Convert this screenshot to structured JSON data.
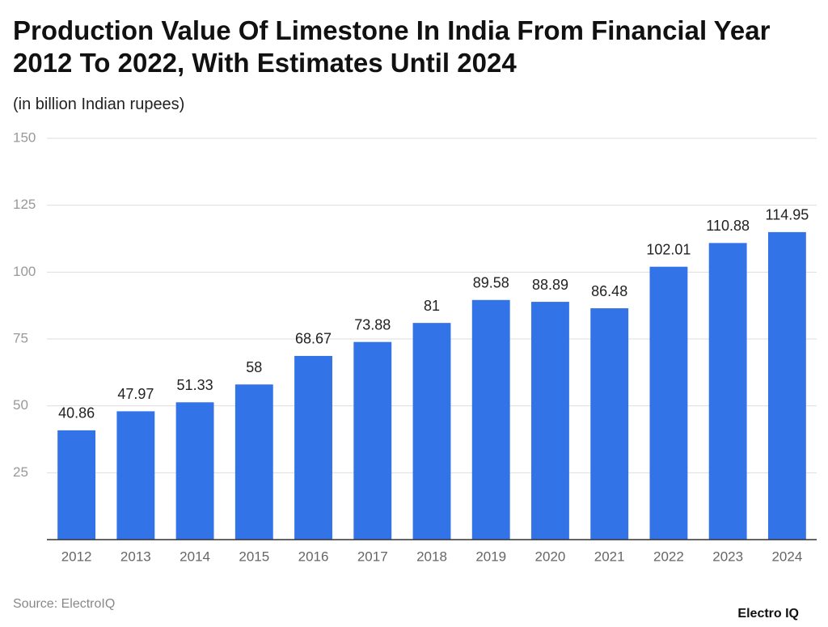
{
  "chart_data": {
    "type": "bar",
    "title": "Production Value Of Limestone In India From Financial Year 2012 To 2022, With Estimates Until 2024",
    "subtitle": "(in billion Indian rupees)",
    "categories": [
      "2012",
      "2013",
      "2014",
      "2015",
      "2016",
      "2017",
      "2018",
      "2019",
      "2020",
      "2021",
      "2022",
      "2023",
      "2024"
    ],
    "values": [
      40.86,
      47.97,
      51.33,
      58,
      68.67,
      73.88,
      81,
      89.58,
      88.89,
      86.48,
      102.01,
      110.88,
      114.95
    ],
    "color": "#3373e8",
    "ylim": [
      0,
      150
    ],
    "yticks": [
      25,
      50,
      75,
      100,
      125,
      150
    ],
    "grid": true,
    "source": "Source: ElectroIQ",
    "logo": "Electro IQ"
  }
}
